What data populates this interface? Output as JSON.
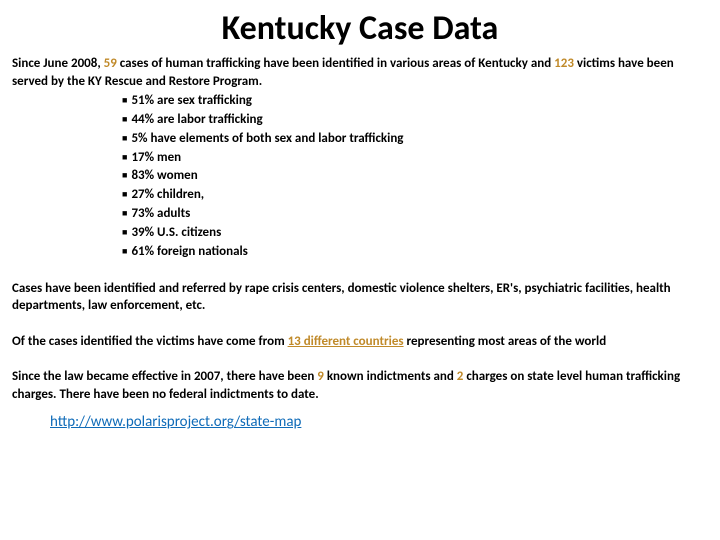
{
  "title": "Kentucky Case Data",
  "intro_pre": "Since June 2008, ",
  "intro_cases": "59",
  "intro_mid": " cases of human trafficking have been identified in various areas of Kentucky and ",
  "intro_victims": "123",
  "intro_tail": " victims have been served by the KY Rescue and Restore Program.",
  "bullets": {
    "b0": "51% are sex trafficking",
    "b1": "44% are labor trafficking",
    "b2": "5% have elements of both sex and labor trafficking",
    "b3": "17% men",
    "b4": "83% women",
    "b5": "27% children,",
    "b6": "73% adults",
    "b7": "39% U.S. citizens",
    "b8": "61% foreign nationals"
  },
  "para1": "Cases have been identified and referred by rape crisis centers, domestic violence shelters, ER's, psychiatric facilities, health departments, law enforcement, etc.",
  "para2_pre": "Of the cases identified the victims have come from ",
  "para2_hl": "13 different countries",
  "para2_tail": " representing most areas of the world",
  "para3_pre": "Since the law became effective in 2007, there have been ",
  "para3_n1": "9",
  "para3_mid": " known indictments and ",
  "para3_n2": "2",
  "para3_tail": " charges on state level human trafficking charges. There have been no federal indictments to date.",
  "link": "http://www.polarisproject.org/state-map",
  "colors": {
    "highlight": "#c08a2a",
    "link": "#0f6bb8",
    "text": "#000000",
    "bg": "#ffffff"
  }
}
